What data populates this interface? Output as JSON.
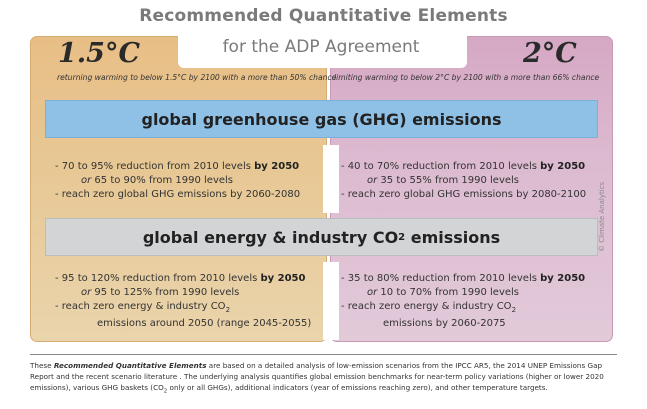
{
  "title": {
    "line1": "Recommended Quantitative Elements",
    "line2": "for the ADP Agreement"
  },
  "left": {
    "temperature": "1.5°C",
    "subtitle": "returning warming to below 1.5°C by 2100 with a more than 50% chance"
  },
  "right": {
    "temperature": "2°C",
    "subtitle": "limiting warming to below 2°C by 2100 with a more than 66% chance"
  },
  "ghg_band": {
    "label": "global greenhouse gas (GHG) emissions"
  },
  "energy_band": {
    "label_main": "global energy & industry CO",
    "label_sub": "2",
    "label_tail": " emissions"
  },
  "ghg_left": {
    "l1a": "- 70 to 95% reduction from 2010 levels ",
    "l1b": "by 2050",
    "l2a": "or",
    "l2b": " 65 to 90% from 1990 levels",
    "l3": "- reach zero global GHG emissions by 2060-2080"
  },
  "ghg_right": {
    "l1a": "- 40 to 70% reduction from 2010 levels ",
    "l1b": "by 2050",
    "l2a": "or",
    "l2b": " 35 to 55% from 1990 levels",
    "l3": "- reach zero global GHG emissions by 2080-2100"
  },
  "energy_left": {
    "l1a": "- 95 to 120% reduction from 2010 levels ",
    "l1b": "by 2050",
    "l2a": "or",
    "l2b": " 95 to 125% from 1990 levels",
    "l3a": "- reach zero energy & industry CO",
    "l3sub": "2",
    "l4": "emissions around 2050 (range 2045-2055)"
  },
  "energy_right": {
    "l1a": "- 35 to 80% reduction from 2010 levels ",
    "l1b": "by 2050",
    "l2a": "or",
    "l2b": " 10 to 70% from 1990 levels",
    "l3a": "- reach zero energy & industry CO",
    "l3sub": "2",
    "l4": "emissions by 2060-2075"
  },
  "credit": "© Climate Analytics",
  "footer": {
    "p1": "These ",
    "p2": "Recommended Quantitative Elements",
    "p3": " are based on a detailed analysis of low-emission scenarios from the IPCC AR5, the 2014 UNEP Emissions Gap Report and the recent scenario literature . The underlying analysis quantifies global emission benchmarks for near-term policy variations (higher or lower 2020 emissions), various GHG baskets (CO",
    "p4": "2",
    "p5": " only or all GHGs), additional indicators (year of emissions reaching zero), and other temperature targets."
  },
  "colors": {
    "left_panel": "#e8be86",
    "right_panel": "#d6a8c3",
    "ghg_band": "#8fc1e6",
    "energy_band": "#d3d4d6"
  }
}
